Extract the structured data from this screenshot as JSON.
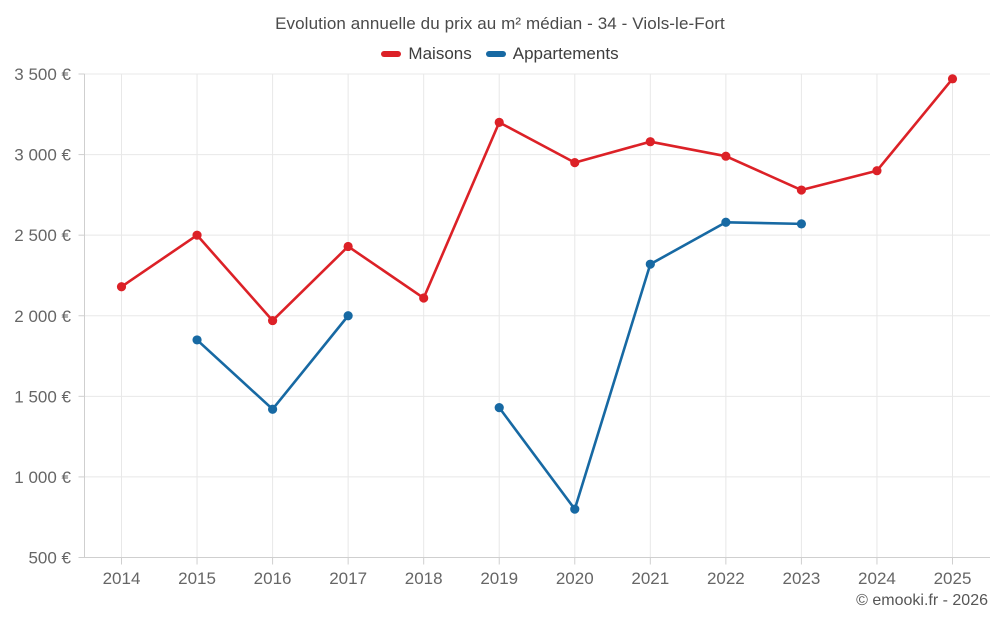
{
  "page": {
    "copyright": "© emooki.fr - 2026"
  },
  "chart_data": {
    "type": "line",
    "title": "Evolution annuelle du prix au m² médian - 34 - Viols-le-Fort",
    "xlabel": "",
    "ylabel": "",
    "categories": [
      "2014",
      "2015",
      "2016",
      "2017",
      "2018",
      "2019",
      "2020",
      "2021",
      "2022",
      "2023",
      "2024",
      "2025"
    ],
    "series": [
      {
        "name": "Maisons",
        "color": "#dc2127",
        "values": [
          2180,
          2500,
          1970,
          2430,
          2110,
          3200,
          2950,
          3080,
          2990,
          2780,
          2900,
          3470
        ]
      },
      {
        "name": "Appartements",
        "color": "#1769a3",
        "values": [
          null,
          1850,
          1420,
          2000,
          null,
          1430,
          800,
          2320,
          2580,
          2570,
          null,
          null
        ]
      }
    ],
    "ylim": [
      500,
      3500
    ],
    "y_ticks": [
      {
        "value": 500,
        "label": "500 €"
      },
      {
        "value": 1000,
        "label": "1 000 €"
      },
      {
        "value": 1500,
        "label": "1 500 €"
      },
      {
        "value": 2000,
        "label": "2 000 €"
      },
      {
        "value": 2500,
        "label": "2 500 €"
      },
      {
        "value": 3000,
        "label": "3 000 €"
      },
      {
        "value": 3500,
        "label": "3 500 €"
      }
    ],
    "grid": true,
    "legend_position": "top",
    "colors": {
      "grid": "#e8e8e8",
      "axis": "#cfcfcf",
      "tick_text": "#666666",
      "title_text": "#4a4a4a",
      "legend_text": "#3d3d3d",
      "copyright_text": "#565656"
    }
  }
}
